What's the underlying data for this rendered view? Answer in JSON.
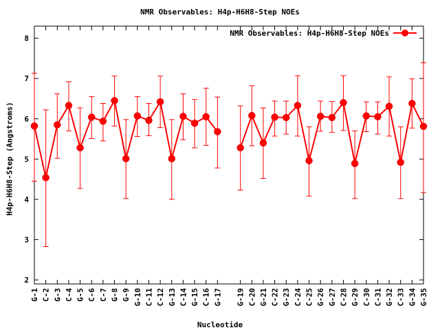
{
  "chart_data": {
    "type": "line",
    "title": "NMR Observables: H4p-H6H8-Step NOEs",
    "xlabel": "Nucleotide",
    "ylabel": "H4p-H6H8-Step (Angstroms)",
    "ylim": [
      1.9,
      8.3
    ],
    "yticks": [
      2,
      3,
      4,
      5,
      6,
      7,
      8
    ],
    "grid": false,
    "legend_position": "top-right",
    "series_color": "#ff0000",
    "x": [
      1,
      2,
      3,
      4,
      5,
      6,
      7,
      8,
      9,
      10,
      11,
      12,
      13,
      14,
      15,
      16,
      17,
      19,
      20,
      21,
      22,
      23,
      24,
      25,
      26,
      27,
      28,
      29,
      30,
      31,
      32,
      33,
      34,
      35
    ],
    "categories": [
      "G-1",
      "C-2",
      "G-3",
      "C-4",
      "G-5",
      "C-6",
      "C-7",
      "G-8",
      "G-9",
      "G-10",
      "C-11",
      "C-12",
      "G-13",
      "C-14",
      "G-15",
      "C-16",
      "G-17",
      "G-19",
      "C-20",
      "G-21",
      "C-22",
      "G-23",
      "C-24",
      "C-25",
      "G-26",
      "G-27",
      "C-28",
      "G-29",
      "C-30",
      "C-31",
      "G-32",
      "C-33",
      "G-34",
      "G-35"
    ],
    "series": [
      {
        "name": "NMR Observables: H4p-H6H8-Step NOEs",
        "values": [
          5.82,
          4.54,
          5.85,
          6.33,
          5.28,
          6.04,
          5.94,
          6.45,
          5.01,
          6.07,
          5.96,
          6.42,
          5.01,
          6.06,
          5.89,
          6.05,
          5.68,
          5.28,
          6.08,
          5.4,
          6.04,
          6.03,
          6.33,
          4.96,
          6.06,
          6.03,
          6.4,
          4.89,
          6.07,
          6.05,
          6.31,
          4.92,
          6.38,
          5.81
        ],
        "err_low": [
          4.45,
          2.83,
          5.02,
          5.7,
          4.27,
          5.51,
          5.45,
          5.82,
          4.02,
          5.56,
          5.58,
          5.78,
          4.0,
          5.48,
          5.28,
          5.34,
          4.78,
          4.23,
          5.33,
          4.52,
          5.57,
          5.62,
          5.57,
          4.08,
          5.69,
          5.66,
          5.71,
          4.02,
          5.68,
          5.62,
          5.57,
          4.02,
          5.77,
          4.17
        ],
        "err_high": [
          7.13,
          6.22,
          6.62,
          6.92,
          6.27,
          6.55,
          6.38,
          7.06,
          5.98,
          6.55,
          6.38,
          7.06,
          5.98,
          6.62,
          6.48,
          6.76,
          6.54,
          6.32,
          6.82,
          6.27,
          6.44,
          6.44,
          7.07,
          5.8,
          6.44,
          6.43,
          7.07,
          5.7,
          6.42,
          6.42,
          7.04,
          5.8,
          6.99,
          7.39
        ]
      }
    ]
  }
}
